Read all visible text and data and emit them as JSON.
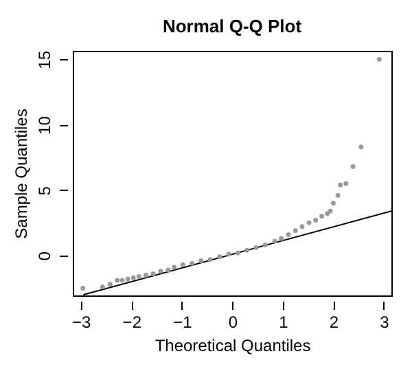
{
  "chart_data": {
    "type": "scatter",
    "title": "Normal Q-Q Plot",
    "xlabel": "Theoretical Quantiles",
    "ylabel": "Sample Quantiles",
    "xlim": [
      -3.16,
      3.15
    ],
    "ylim": [
      -3.05,
      15.65
    ],
    "xticks": [
      -3,
      -2,
      -1,
      0,
      1,
      2,
      3
    ],
    "yticks": [
      0,
      5,
      10,
      15
    ],
    "grid": false,
    "series": [
      {
        "color": "#999999",
        "marker": "circle",
        "x": [
          -2.96,
          -2.57,
          -2.42,
          -2.28,
          -2.18,
          -2.07,
          -1.96,
          -1.85,
          -1.71,
          -1.57,
          -1.42,
          -1.27,
          -1.15,
          -0.98,
          -0.8,
          -0.62,
          -0.44,
          -0.25,
          -0.07,
          0.11,
          0.29,
          0.47,
          0.65,
          0.84,
          0.97,
          1.11,
          1.25,
          1.38,
          1.52,
          1.65,
          1.77,
          1.88,
          1.94,
          2.0,
          2.09,
          2.14,
          2.25,
          2.39,
          2.55,
          2.91
        ],
        "values": [
          -2.5,
          -2.4,
          -2.2,
          -1.9,
          -1.9,
          -1.8,
          -1.7,
          -1.6,
          -1.5,
          -1.4,
          -1.2,
          -1.1,
          -0.9,
          -0.7,
          -0.6,
          -0.4,
          -0.3,
          -0.1,
          0.1,
          0.2,
          0.4,
          0.6,
          0.8,
          1.1,
          1.3,
          1.6,
          1.9,
          2.2,
          2.5,
          2.7,
          3.0,
          3.2,
          3.4,
          4.0,
          4.6,
          5.4,
          5.5,
          6.8,
          8.3,
          15.0
        ]
      },
      {
        "type": "line",
        "color": "#000000",
        "marker": "none",
        "line_style": "solid",
        "x": [
          -2.95,
          3.15
        ],
        "values": [
          -3.0,
          3.4
        ]
      }
    ]
  }
}
